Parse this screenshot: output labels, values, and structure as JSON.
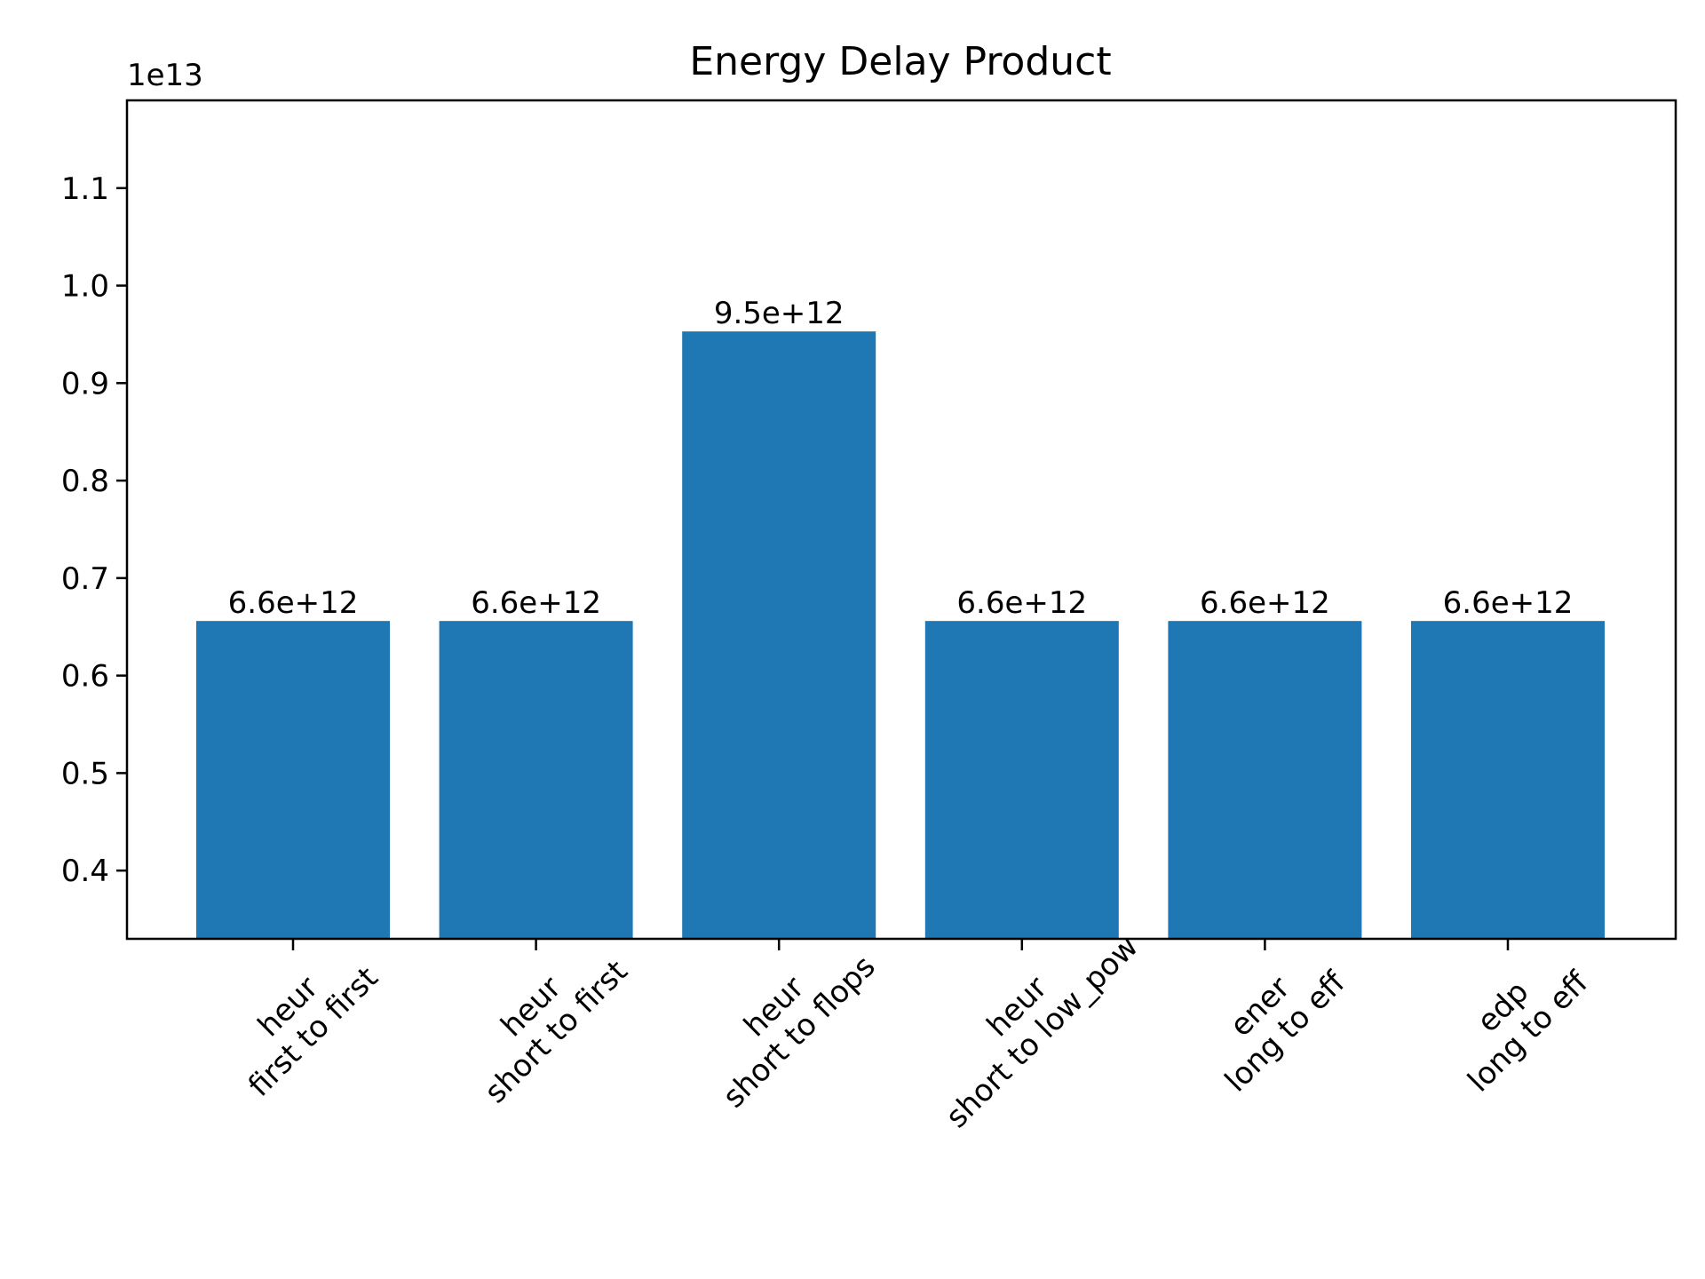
{
  "chart_data": {
    "type": "bar",
    "title": "Energy Delay Product",
    "xlabel": "",
    "ylabel": "",
    "y_offset_label": "1e13",
    "y_scale_exponent": 13,
    "ylim": [
      0.33,
      1.19
    ],
    "yticks": [
      0.4,
      0.5,
      0.6,
      0.7,
      0.8,
      0.9,
      1.0,
      1.1
    ],
    "ytick_labels": [
      "0.4",
      "0.5",
      "0.6",
      "0.7",
      "0.8",
      "0.9",
      "1.0",
      "1.1"
    ],
    "grid": false,
    "legend": "none",
    "bar_color": "#1f77b4",
    "categories": [
      [
        "heur",
        "first to first"
      ],
      [
        "heur",
        "short to first"
      ],
      [
        "heur",
        "short to flops"
      ],
      [
        "heur",
        "short to low_pow"
      ],
      [
        "ener",
        "long to eff"
      ],
      [
        "edp",
        "long to eff"
      ]
    ],
    "values": [
      0.656,
      0.656,
      0.953,
      0.656,
      0.656,
      0.656
    ],
    "data_labels": [
      "6.6e+12",
      "6.6e+12",
      "9.5e+12",
      "6.6e+12",
      "6.6e+12",
      "6.6e+12"
    ]
  }
}
